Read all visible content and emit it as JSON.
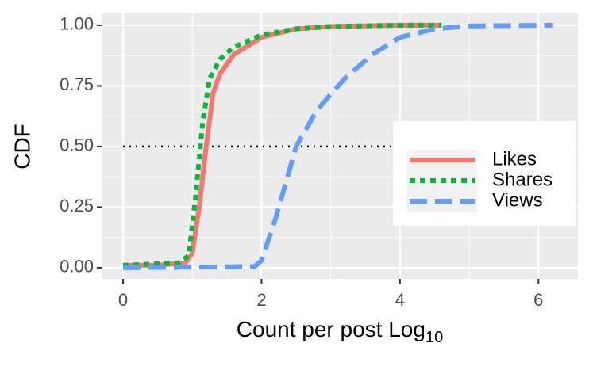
{
  "chart_data": {
    "type": "line",
    "x_label": {
      "text": "Count per post Log",
      "subscript": "10"
    },
    "y_label": "CDF",
    "xlim": [
      -0.31,
      6.57
    ],
    "ylim": [
      -0.046,
      1.052
    ],
    "xticks": [
      0,
      2,
      4,
      6
    ],
    "yticks": [
      {
        "value": 0,
        "label": "0.00"
      },
      {
        "value": 0.25,
        "label": "0.25"
      },
      {
        "value": 0.5,
        "label": "0.50"
      },
      {
        "value": 0.75,
        "label": "0.75"
      },
      {
        "value": 1,
        "label": "1.00"
      }
    ],
    "grid": true,
    "reference_line": {
      "y": 0.5,
      "x": [
        0,
        6.2
      ]
    },
    "legend": "right",
    "series": [
      {
        "name": "Likes",
        "color": "#F8766D",
        "dash": "solid",
        "x": [
          0,
          0.5,
          0.9,
          1.0,
          1.1,
          1.2,
          1.3,
          1.4,
          1.6,
          2,
          2.5,
          3,
          4,
          4.6
        ],
        "values": [
          0.01,
          0.01,
          0.02,
          0.06,
          0.25,
          0.5,
          0.72,
          0.8,
          0.88,
          0.95,
          0.985,
          0.995,
          1,
          1
        ]
      },
      {
        "name": "Shares",
        "color": "#00BA38",
        "dash": "dotted",
        "x": [
          0,
          0.8,
          0.95,
          1.05,
          1.15,
          1.25,
          1.4,
          1.6,
          2,
          2.5,
          3,
          4,
          4.6
        ],
        "values": [
          0.01,
          0.02,
          0.05,
          0.3,
          0.6,
          0.78,
          0.86,
          0.91,
          0.96,
          0.985,
          0.995,
          1,
          1
        ]
      },
      {
        "name": "Views",
        "color": "#619CFF",
        "dash": "dashed",
        "x": [
          0,
          1.9,
          2.0,
          2.2,
          2.5,
          2.8,
          3.2,
          3.6,
          4,
          4.5,
          5,
          6.2
        ],
        "values": [
          0,
          0.005,
          0.03,
          0.2,
          0.5,
          0.65,
          0.78,
          0.88,
          0.95,
          0.985,
          0.997,
          1
        ]
      }
    ]
  }
}
